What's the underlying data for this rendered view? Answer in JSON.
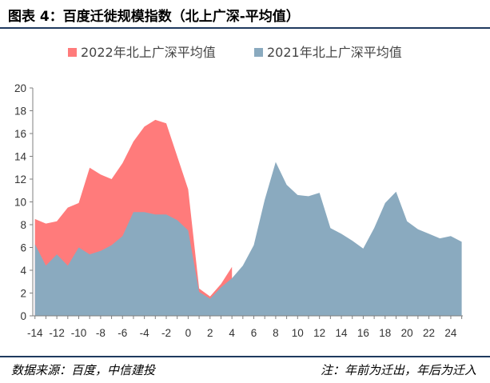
{
  "header": {
    "title": "图表 4：百度迁徙规模指数（北上广深-平均值）"
  },
  "footer": {
    "source": "数据来源：百度，中信建投",
    "note": "注：年前为迁出，年后为迁入"
  },
  "colors": {
    "series_2022": "#ff7b7b",
    "series_2021": "#8aaabf",
    "rule": "#1f3a5f"
  },
  "chart_data": {
    "type": "area",
    "title": "",
    "xlabel": "",
    "ylabel": "",
    "xlim": [
      -14,
      25
    ],
    "ylim": [
      0,
      20
    ],
    "yticks": [
      0,
      2,
      4,
      6,
      8,
      10,
      12,
      14,
      16,
      18,
      20
    ],
    "xticks": [
      -14,
      -12,
      -10,
      -8,
      -6,
      -4,
      -2,
      0,
      2,
      4,
      6,
      8,
      10,
      12,
      14,
      16,
      18,
      20,
      22,
      24
    ],
    "grid": false,
    "legend": "top",
    "series": [
      {
        "name": "2022年北上广深平均值",
        "x": [
          -14,
          -13,
          -12,
          -11,
          -10,
          -9,
          -8,
          -7,
          -6,
          -5,
          -4,
          -3,
          -2,
          -1,
          0,
          1,
          2,
          3,
          4
        ],
        "values": [
          8.5,
          8.1,
          8.3,
          9.5,
          9.9,
          13.0,
          12.4,
          12.0,
          13.4,
          15.3,
          16.6,
          17.2,
          16.9,
          14.0,
          11.1,
          2.4,
          1.7,
          2.8,
          4.3
        ]
      },
      {
        "name": "2021年北上广深平均值",
        "x": [
          -14,
          -13,
          -12,
          -11,
          -10,
          -9,
          -8,
          -7,
          -6,
          -5,
          -4,
          -3,
          -2,
          -1,
          0,
          1,
          2,
          3,
          4,
          5,
          6,
          7,
          8,
          9,
          10,
          11,
          12,
          13,
          14,
          15,
          16,
          17,
          18,
          19,
          20,
          21,
          22,
          23,
          24,
          25
        ],
        "values": [
          6.3,
          4.4,
          5.4,
          4.4,
          6.0,
          5.4,
          5.7,
          6.2,
          7.0,
          9.1,
          9.1,
          8.9,
          8.9,
          8.4,
          7.5,
          2.1,
          1.5,
          2.5,
          3.3,
          4.4,
          6.2,
          10.2,
          13.5,
          11.5,
          10.6,
          10.5,
          10.8,
          7.7,
          7.2,
          6.6,
          5.9,
          7.7,
          9.9,
          10.9,
          8.3,
          7.6,
          7.2,
          6.8,
          7.0,
          6.5
        ]
      }
    ]
  }
}
